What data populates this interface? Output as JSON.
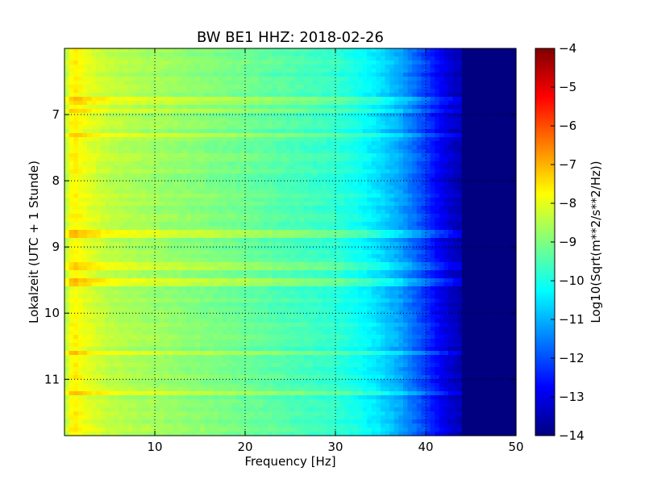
{
  "chart_data": {
    "type": "heatmap",
    "title": "BW BE1 HHZ: 2018-02-26",
    "xlabel": "Frequency [Hz]",
    "ylabel": "Lokalzeit (UTC + 1 Stunde)",
    "xlim": [
      0,
      50
    ],
    "ylim": [
      6.0,
      11.85
    ],
    "y_inverted": true,
    "x_ticks": [
      10,
      20,
      30,
      40,
      50
    ],
    "y_ticks": [
      7,
      8,
      9,
      10,
      11
    ],
    "grid": true,
    "colorbar": {
      "label": "Log10(Sqrt(m**2/s**2/Hz))",
      "range": [
        -14,
        -4
      ],
      "ticks": [
        -4,
        -5,
        -6,
        -7,
        -8,
        -9,
        -10,
        -11,
        -12,
        -13,
        -14
      ],
      "colormap": "jet"
    },
    "frequency_profile": {
      "frequency_hz": [
        0,
        0.5,
        1,
        2,
        3,
        5,
        8,
        10,
        15,
        20,
        25,
        30,
        33,
        35,
        37,
        39,
        40,
        41,
        42,
        43,
        43.8,
        44.2,
        50
      ],
      "log10_amplitude": [
        -8.7,
        -8.0,
        -7.6,
        -7.9,
        -8.1,
        -8.4,
        -8.6,
        -8.7,
        -8.95,
        -9.2,
        -9.5,
        -9.8,
        -10.2,
        -10.6,
        -11.1,
        -11.8,
        -12.2,
        -12.6,
        -13.0,
        -13.3,
        -13.5,
        -14.0,
        -14.0
      ]
    },
    "bright_time_bands_hours": [
      6.8,
      6.95,
      7.3,
      8.8,
      9.3,
      9.55,
      10.6,
      11.2
    ]
  }
}
